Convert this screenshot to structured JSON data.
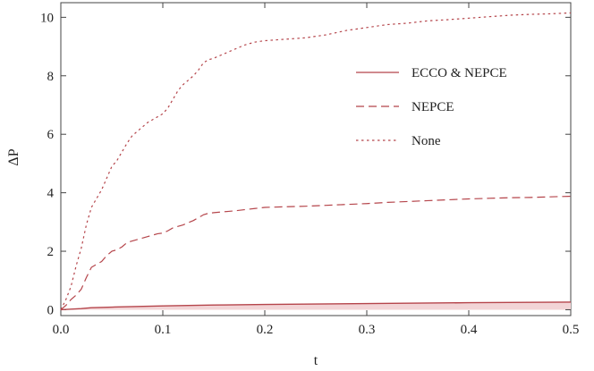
{
  "chart_data": {
    "type": "line",
    "xlabel": "t",
    "ylabel": "ΔP",
    "xlim": [
      0,
      0.5
    ],
    "ylim": [
      -0.2,
      10.5
    ],
    "xticks": [
      0.0,
      0.1,
      0.2,
      0.3,
      0.4,
      0.5
    ],
    "xtick_labels": [
      "0.0",
      "0.1",
      "0.2",
      "0.3",
      "0.4",
      "0.5"
    ],
    "yticks": [
      0,
      2,
      4,
      6,
      8,
      10
    ],
    "ytick_labels": [
      "0",
      "2",
      "4",
      "6",
      "8",
      "10"
    ],
    "grid": false,
    "legend_position": "top-right",
    "colors": {
      "line": "#b5454b",
      "band": "#f2d4d6",
      "frame": "#444444"
    },
    "series": [
      {
        "name": "ECCO & NEPCE",
        "style": "solid",
        "x": [
          0,
          0.01,
          0.02,
          0.03,
          0.05,
          0.1,
          0.15,
          0.2,
          0.3,
          0.4,
          0.5
        ],
        "y": [
          0,
          0.02,
          0.04,
          0.07,
          0.09,
          0.13,
          0.16,
          0.18,
          0.21,
          0.24,
          0.26
        ]
      },
      {
        "name": "NEPCE",
        "style": "dashed",
        "x": [
          0,
          0.005,
          0.01,
          0.015,
          0.02,
          0.025,
          0.03,
          0.035,
          0.04,
          0.045,
          0.05,
          0.055,
          0.06,
          0.065,
          0.07,
          0.075,
          0.08,
          0.085,
          0.09,
          0.095,
          0.1,
          0.105,
          0.11,
          0.115,
          0.12,
          0.125,
          0.13,
          0.135,
          0.14,
          0.145,
          0.15,
          0.16,
          0.17,
          0.18,
          0.19,
          0.2,
          0.22,
          0.24,
          0.26,
          0.28,
          0.3,
          0.32,
          0.34,
          0.36,
          0.38,
          0.4,
          0.42,
          0.44,
          0.46,
          0.48,
          0.5
        ],
        "y": [
          0,
          0.15,
          0.35,
          0.5,
          0.7,
          1.1,
          1.45,
          1.55,
          1.65,
          1.85,
          2.0,
          2.05,
          2.15,
          2.3,
          2.35,
          2.4,
          2.45,
          2.5,
          2.55,
          2.6,
          2.62,
          2.7,
          2.8,
          2.85,
          2.9,
          2.98,
          3.05,
          3.15,
          3.25,
          3.3,
          3.32,
          3.35,
          3.38,
          3.42,
          3.46,
          3.5,
          3.52,
          3.54,
          3.57,
          3.6,
          3.63,
          3.67,
          3.7,
          3.73,
          3.76,
          3.79,
          3.81,
          3.83,
          3.84,
          3.86,
          3.88
        ]
      },
      {
        "name": "None",
        "style": "dotted",
        "x": [
          0,
          0.005,
          0.01,
          0.015,
          0.02,
          0.025,
          0.03,
          0.035,
          0.04,
          0.045,
          0.05,
          0.055,
          0.06,
          0.065,
          0.07,
          0.075,
          0.08,
          0.085,
          0.09,
          0.095,
          0.1,
          0.105,
          0.11,
          0.115,
          0.12,
          0.125,
          0.13,
          0.135,
          0.14,
          0.145,
          0.15,
          0.16,
          0.17,
          0.18,
          0.19,
          0.2,
          0.22,
          0.24,
          0.26,
          0.28,
          0.3,
          0.32,
          0.34,
          0.36,
          0.38,
          0.4,
          0.42,
          0.44,
          0.46,
          0.48,
          0.5
        ],
        "y": [
          0,
          0.35,
          0.8,
          1.5,
          2.1,
          2.9,
          3.5,
          3.8,
          4.1,
          4.5,
          4.9,
          5.1,
          5.4,
          5.7,
          5.95,
          6.1,
          6.25,
          6.4,
          6.5,
          6.6,
          6.7,
          6.9,
          7.2,
          7.5,
          7.7,
          7.85,
          8.0,
          8.2,
          8.45,
          8.55,
          8.6,
          8.75,
          8.9,
          9.05,
          9.15,
          9.2,
          9.25,
          9.3,
          9.4,
          9.55,
          9.65,
          9.75,
          9.8,
          9.88,
          9.92,
          9.97,
          10.02,
          10.07,
          10.1,
          10.12,
          10.15
        ]
      }
    ]
  }
}
